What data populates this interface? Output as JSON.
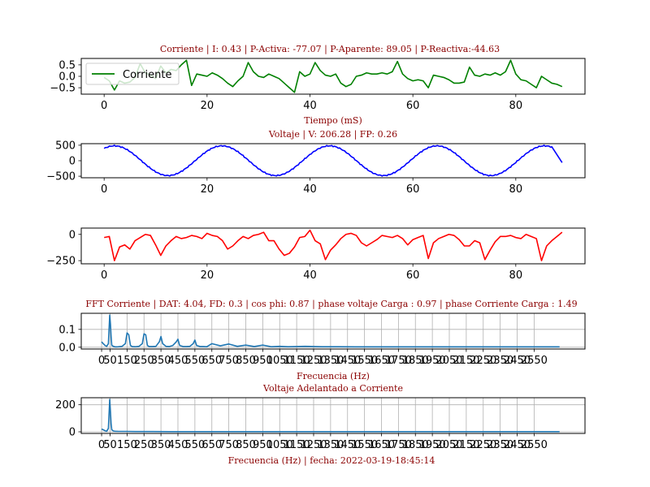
{
  "chart_data": [
    {
      "type": "line",
      "title": "Corriente | I: 0.43  |  P-Activa: -77.07 | P-Aparente: 89.05  |  P-Reactiva:-44.63",
      "xlabel": "Tiempo (mS)",
      "ylabel": "",
      "xlim": [
        -4.45,
        93.45
      ],
      "ylim": [
        -0.78,
        0.78
      ],
      "xticks": [
        0,
        20,
        40,
        60,
        80
      ],
      "yticks": [
        -0.5,
        0.0,
        0.5
      ],
      "ytick_labels": [
        "−0.5",
        "0.0",
        "0.5"
      ],
      "grid": false,
      "legend": "upper-left",
      "series": [
        {
          "name": "Corriente",
          "color": "#008000",
          "x": [
            0,
            1,
            2,
            3,
            4,
            5,
            6,
            7,
            8,
            9,
            10,
            11,
            12,
            13,
            14,
            15,
            16,
            17,
            18,
            19,
            20,
            21,
            22,
            23,
            24,
            25,
            26,
            27,
            28,
            29,
            30,
            31,
            32,
            33,
            34,
            35,
            36,
            37,
            38,
            39,
            40,
            41,
            42,
            43,
            44,
            45,
            46,
            47,
            48,
            49,
            50,
            51,
            52,
            53,
            54,
            55,
            56,
            57,
            58,
            59,
            60,
            61,
            62,
            63,
            64,
            65,
            66,
            67,
            68,
            69,
            70,
            71,
            72,
            73,
            74,
            75,
            76,
            77,
            78,
            79,
            80,
            81,
            82,
            83,
            84,
            85,
            86,
            87,
            88,
            89
          ],
          "y": [
            -0.05,
            -0.2,
            -0.6,
            -0.2,
            -0.3,
            -0.25,
            -0.05,
            0.55,
            0.15,
            0.05,
            -0.1,
            0.45,
            0.15,
            0.3,
            0.25,
            0.5,
            0.7,
            -0.4,
            0.1,
            0.05,
            0.0,
            0.15,
            0.05,
            -0.1,
            -0.3,
            -0.45,
            -0.2,
            0.0,
            0.6,
            0.2,
            0.0,
            -0.05,
            0.1,
            0.0,
            -0.1,
            -0.3,
            -0.5,
            -0.7,
            0.2,
            0.0,
            0.1,
            0.6,
            0.25,
            0.05,
            0.0,
            0.1,
            -0.3,
            -0.45,
            -0.35,
            0.0,
            0.05,
            0.15,
            0.1,
            0.1,
            0.15,
            0.1,
            0.2,
            0.65,
            0.1,
            -0.1,
            -0.2,
            -0.15,
            -0.2,
            -0.5,
            0.05,
            0.0,
            -0.05,
            -0.15,
            -0.3,
            -0.3,
            -0.25,
            0.4,
            0.05,
            0.0,
            0.1,
            0.05,
            0.15,
            0.05,
            0.2,
            0.7,
            0.1,
            -0.15,
            -0.2,
            -0.35,
            -0.5,
            0.0,
            -0.15,
            -0.3,
            -0.35,
            -0.45
          ]
        }
      ]
    },
    {
      "type": "line",
      "title": "Voltaje | V: 206.28 |  FP: 0.26",
      "xlabel": "",
      "ylabel": "",
      "xlim": [
        -4.45,
        93.45
      ],
      "ylim": [
        -550,
        550
      ],
      "xticks": [
        0,
        20,
        40,
        60,
        80
      ],
      "yticks": [
        -500,
        0,
        500
      ],
      "ytick_labels": [
        "−500",
        "0",
        "500"
      ],
      "grid": false,
      "series": [
        {
          "name": "",
          "color": "#0000ff",
          "formula": "sine",
          "amplitude": 480,
          "period": 20.9,
          "phase_ms": 2.0,
          "x_range": [
            0,
            89
          ],
          "end_value": -60
        }
      ]
    },
    {
      "type": "line",
      "title": "",
      "xlabel": "",
      "ylabel": "",
      "xlim": [
        -4.45,
        93.45
      ],
      "ylim": [
        -280,
        60
      ],
      "xticks": [
        0,
        20,
        40,
        60,
        80
      ],
      "yticks": [
        -250,
        0
      ],
      "ytick_labels": [
        "−250",
        "0"
      ],
      "grid": false,
      "series": [
        {
          "name": "",
          "color": "#ff0000",
          "x": [
            0,
            1,
            2,
            3,
            4,
            5,
            6,
            7,
            8,
            9,
            10,
            11,
            12,
            13,
            14,
            15,
            16,
            17,
            18,
            19,
            20,
            21,
            22,
            23,
            24,
            25,
            26,
            27,
            28,
            29,
            30,
            31,
            32,
            33,
            34,
            35,
            36,
            37,
            38,
            39,
            40,
            41,
            42,
            43,
            44,
            45,
            46,
            47,
            48,
            49,
            50,
            51,
            52,
            53,
            54,
            55,
            56,
            57,
            58,
            59,
            60,
            61,
            62,
            63,
            64,
            65,
            66,
            67,
            68,
            69,
            70,
            71,
            72,
            73,
            74,
            75,
            76,
            77,
            78,
            79,
            80,
            81,
            82,
            83,
            84,
            85,
            86,
            87,
            88,
            89
          ],
          "y": [
            -30,
            -20,
            -250,
            -120,
            -100,
            -140,
            -60,
            -30,
            0,
            -10,
            -100,
            -200,
            -110,
            -60,
            -20,
            -40,
            -30,
            -10,
            -20,
            -40,
            10,
            -10,
            -20,
            -60,
            -140,
            -110,
            -60,
            -20,
            -40,
            -10,
            0,
            20,
            -60,
            -60,
            -140,
            -200,
            -180,
            -120,
            -30,
            -20,
            40,
            -60,
            -90,
            -240,
            -150,
            -100,
            -40,
            0,
            10,
            -10,
            -80,
            -110,
            -80,
            -50,
            -10,
            -20,
            -30,
            -10,
            -40,
            -100,
            -50,
            -30,
            -10,
            -230,
            -80,
            -40,
            -20,
            0,
            -10,
            -50,
            -110,
            -110,
            -60,
            -80,
            -240,
            -150,
            -70,
            -20,
            -20,
            -10,
            -30,
            -40,
            0,
            -20,
            -40,
            -250,
            -110,
            -60,
            -20,
            20
          ]
        }
      ]
    },
    {
      "type": "line",
      "title": "FFT Corriente | DAT: 4.04, FD: 0.3 |   cos phi: 0.87 | phase voltaje Carga : 0.97 | phase Corriente Carga : 1.49",
      "xlabel": "Frecuencia (Hz)",
      "ylabel": "",
      "xlim": [
        -120,
        2850
      ],
      "ylim": [
        -0.01,
        0.19
      ],
      "xticks": [
        0,
        50,
        150,
        250,
        350,
        450,
        550,
        650,
        750,
        850,
        950,
        1050,
        1150,
        1250,
        1350,
        1450,
        1550,
        1650,
        1750,
        1850,
        1950,
        2050,
        2150,
        2250,
        2350,
        2450,
        2550
      ],
      "yticks": [
        0.0,
        0.1
      ],
      "ytick_labels": [
        "0.0",
        "0.1"
      ],
      "grid": true,
      "series": [
        {
          "name": "",
          "color": "#1f77b4",
          "x": [
            0,
            10,
            20,
            30,
            40,
            48,
            52,
            56,
            60,
            70,
            80,
            90,
            100,
            120,
            140,
            150,
            160,
            170,
            180,
            200,
            220,
            240,
            250,
            260,
            270,
            280,
            300,
            320,
            340,
            350,
            360,
            380,
            400,
            420,
            440,
            450,
            460,
            480,
            500,
            520,
            540,
            550,
            560,
            580,
            600,
            620,
            650,
            700,
            750,
            800,
            850,
            900,
            950,
            1000,
            1050,
            1100,
            1200,
            1300,
            1400,
            1500,
            1600,
            1700,
            1800,
            1900,
            2000,
            2100,
            2200,
            2300,
            2400,
            2500,
            2600,
            2700
          ],
          "y": [
            0.03,
            0.02,
            0.01,
            0.005,
            0.02,
            0.18,
            0.13,
            0.06,
            0.01,
            0.005,
            0.002,
            0.002,
            0.003,
            0.005,
            0.02,
            0.08,
            0.07,
            0.01,
            0.004,
            0.003,
            0.005,
            0.02,
            0.075,
            0.07,
            0.01,
            0.004,
            0.004,
            0.005,
            0.03,
            0.06,
            0.02,
            0.005,
            0.004,
            0.01,
            0.03,
            0.045,
            0.01,
            0.004,
            0.004,
            0.005,
            0.02,
            0.04,
            0.01,
            0.004,
            0.004,
            0.003,
            0.02,
            0.008,
            0.018,
            0.005,
            0.012,
            0.004,
            0.012,
            0.003,
            0.005,
            0.003,
            0.005,
            0.003,
            0.003,
            0.002,
            0.002,
            0.002,
            0.002,
            0.002,
            0.002,
            0.002,
            0.002,
            0.002,
            0.002,
            0.002,
            0.002,
            0.002
          ]
        }
      ]
    },
    {
      "type": "line",
      "title": "Voltaje Adelantado a Corriente",
      "xlabel": "Frecuencia (Hz)  |    fecha: 2022-03-19-18:45:14",
      "ylabel": "",
      "xlim": [
        -120,
        2850
      ],
      "ylim": [
        -12,
        252
      ],
      "xticks": [
        0,
        50,
        150,
        250,
        350,
        450,
        550,
        650,
        750,
        850,
        950,
        1050,
        1150,
        1250,
        1350,
        1450,
        1550,
        1650,
        1750,
        1850,
        1950,
        2050,
        2150,
        2250,
        2350,
        2450,
        2550
      ],
      "yticks": [
        0,
        200
      ],
      "ytick_labels": [
        "0",
        "200"
      ],
      "grid": true,
      "series": [
        {
          "name": "",
          "color": "#1f77b4",
          "x": [
            0,
            10,
            20,
            30,
            40,
            48,
            52,
            56,
            60,
            70,
            80,
            100,
            150,
            200,
            250,
            300,
            400,
            500,
            600,
            800,
            1000,
            1500,
            2000,
            2700
          ],
          "y": [
            20,
            15,
            8,
            4,
            25,
            240,
            150,
            60,
            15,
            6,
            4,
            3,
            3,
            2,
            2,
            2,
            1,
            1,
            1,
            1,
            1,
            1,
            1,
            1
          ]
        }
      ]
    }
  ]
}
